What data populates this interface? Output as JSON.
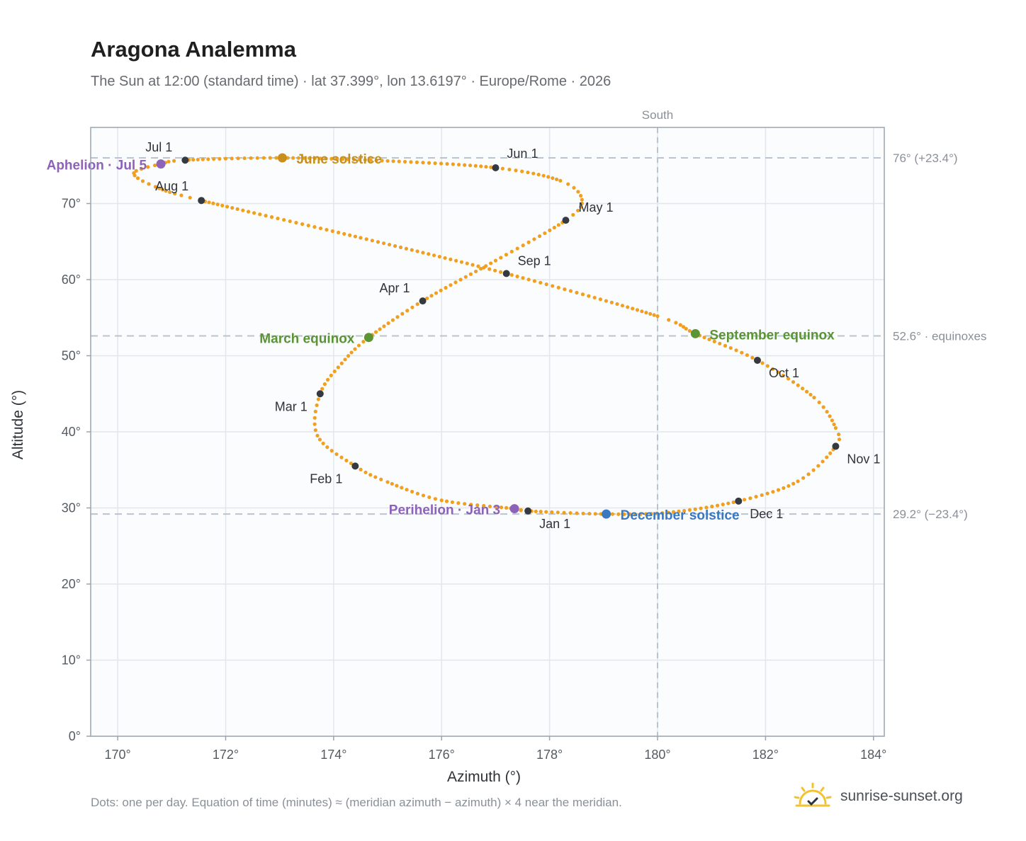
{
  "header": {
    "title": "Aragona Analemma",
    "subtitle": "The Sun at 12:00 (standard time) · lat 37.399°, lon 13.6197° · Europe/Rome · 2026"
  },
  "footer": {
    "note": "Dots: one per day. Equation of time (minutes) ≈ (meridian azimuth − azimuth) × 4 near the meridian.",
    "brand": "sunrise-sunset.org"
  },
  "colors": {
    "path": "#f0a01e",
    "month_marker": "#343a40",
    "june_solstice": "#c8901a",
    "december_solstice": "#3a78c2",
    "equinox": "#5a9434",
    "apsis": "#8c63b8",
    "reference_line": "#b9c4ce",
    "grid": "#e2e7ec",
    "plot_background": "#fafcfe",
    "frame": "#9aa5b1"
  },
  "chart_data": {
    "type": "scatter",
    "xlabel": "Azimuth (°)",
    "ylabel": "Altitude (°)",
    "xlim": [
      169.5,
      184.2
    ],
    "ylim": [
      0,
      80
    ],
    "x_ticks": [
      170,
      172,
      174,
      176,
      178,
      180,
      182,
      184
    ],
    "x_tick_labels": [
      "170°",
      "172°",
      "174°",
      "176°",
      "178°",
      "180°",
      "182°",
      "184°"
    ],
    "y_ticks": [
      0,
      10,
      20,
      30,
      40,
      50,
      60,
      70
    ],
    "y_tick_labels": [
      "0°",
      "10°",
      "20°",
      "30°",
      "40°",
      "50°",
      "60°",
      "70°"
    ],
    "grid": true,
    "meridian": {
      "azimuth": 180,
      "label": "South"
    },
    "reference_lines": [
      {
        "altitude": 76.0,
        "label": "76° (+23.4°)"
      },
      {
        "altitude": 52.6,
        "label": "52.6° · equinoxes"
      },
      {
        "altitude": 29.2,
        "label": "29.2° (−23.4°)"
      }
    ],
    "month_markers": [
      {
        "label": "Jan 1",
        "azimuth": 177.6,
        "altitude": 29.6
      },
      {
        "label": "Feb 1",
        "azimuth": 174.4,
        "altitude": 35.5
      },
      {
        "label": "Mar 1",
        "azimuth": 173.75,
        "altitude": 45.0
      },
      {
        "label": "Apr 1",
        "azimuth": 175.65,
        "altitude": 57.2
      },
      {
        "label": "May 1",
        "azimuth": 178.3,
        "altitude": 67.8
      },
      {
        "label": "Jun 1",
        "azimuth": 177.0,
        "altitude": 74.7
      },
      {
        "label": "Jul 1",
        "azimuth": 171.25,
        "altitude": 75.7
      },
      {
        "label": "Aug 1",
        "azimuth": 171.55,
        "altitude": 70.4
      },
      {
        "label": "Sep 1",
        "azimuth": 177.2,
        "altitude": 60.8
      },
      {
        "label": "Oct 1",
        "azimuth": 181.85,
        "altitude": 49.4
      },
      {
        "label": "Nov 1",
        "azimuth": 183.3,
        "altitude": 38.1
      },
      {
        "label": "Dec 1",
        "azimuth": 181.5,
        "altitude": 30.9
      }
    ],
    "events": [
      {
        "label": "June solstice",
        "azimuth": 173.05,
        "altitude": 76.0,
        "kind": "june_solstice"
      },
      {
        "label": "December solstice",
        "azimuth": 179.05,
        "altitude": 29.2,
        "kind": "december_solstice"
      },
      {
        "label": "March equinox",
        "azimuth": 174.65,
        "altitude": 52.4,
        "kind": "equinox"
      },
      {
        "label": "September equinox",
        "azimuth": 180.7,
        "altitude": 52.9,
        "kind": "equinox"
      },
      {
        "label": "Aphelion · Jul 5",
        "azimuth": 170.8,
        "altitude": 75.2,
        "kind": "apsis"
      },
      {
        "label": "Perihelion · Jan 3",
        "azimuth": 177.35,
        "altitude": 29.9,
        "kind": "apsis"
      }
    ],
    "path": [
      {
        "azimuth": 177.6,
        "altitude": 29.6
      },
      {
        "azimuth": 177.35,
        "altitude": 29.9
      },
      {
        "azimuth": 176.0,
        "altitude": 31.0
      },
      {
        "azimuth": 175.0,
        "altitude": 33.4
      },
      {
        "azimuth": 174.4,
        "altitude": 35.5
      },
      {
        "azimuth": 173.7,
        "altitude": 39.5
      },
      {
        "azimuth": 173.75,
        "altitude": 45.0
      },
      {
        "azimuth": 174.15,
        "altitude": 49.0
      },
      {
        "azimuth": 174.65,
        "altitude": 52.4
      },
      {
        "azimuth": 175.65,
        "altitude": 57.2
      },
      {
        "azimuth": 177.0,
        "altitude": 62.5
      },
      {
        "azimuth": 178.3,
        "altitude": 67.8
      },
      {
        "azimuth": 178.6,
        "altitude": 70.5
      },
      {
        "azimuth": 178.2,
        "altitude": 73.0
      },
      {
        "azimuth": 177.0,
        "altitude": 74.7
      },
      {
        "azimuth": 175.0,
        "altitude": 75.6
      },
      {
        "azimuth": 173.05,
        "altitude": 76.0
      },
      {
        "azimuth": 171.25,
        "altitude": 75.7
      },
      {
        "azimuth": 170.8,
        "altitude": 75.2
      },
      {
        "azimuth": 170.3,
        "altitude": 74.0
      },
      {
        "azimuth": 170.7,
        "altitude": 72.2
      },
      {
        "azimuth": 171.55,
        "altitude": 70.4
      },
      {
        "azimuth": 174.5,
        "altitude": 65.5
      },
      {
        "azimuth": 177.2,
        "altitude": 60.8
      },
      {
        "azimuth": 180.0,
        "altitude": 55.2
      },
      {
        "azimuth": 180.7,
        "altitude": 52.9
      },
      {
        "azimuth": 181.85,
        "altitude": 49.4
      },
      {
        "azimuth": 182.9,
        "altitude": 44.5
      },
      {
        "azimuth": 183.3,
        "altitude": 40.5
      },
      {
        "azimuth": 183.3,
        "altitude": 38.1
      },
      {
        "azimuth": 182.6,
        "altitude": 33.5
      },
      {
        "azimuth": 181.5,
        "altitude": 30.9
      },
      {
        "azimuth": 180.2,
        "altitude": 29.4
      },
      {
        "azimuth": 179.05,
        "altitude": 29.2
      },
      {
        "azimuth": 177.6,
        "altitude": 29.6
      }
    ]
  }
}
